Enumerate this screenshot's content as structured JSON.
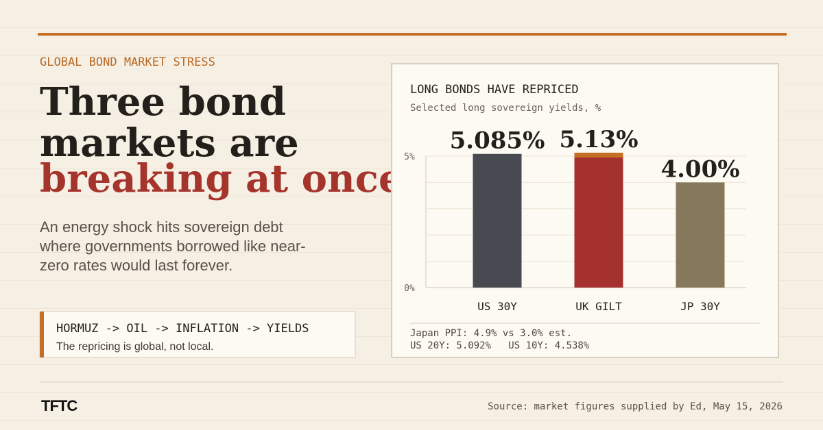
{
  "kicker": "GLOBAL BOND MARKET STRESS",
  "headline": [
    "Three bond",
    "markets are",
    "breaking at once"
  ],
  "subhead": "An energy shock hits sovereign debt where governments borrowed like near-zero rates would last forever.",
  "callout": {
    "title": "HORMUZ -> OIL -> INFLATION -> YIELDS",
    "text": "The repricing is global, not local."
  },
  "logo": "TFTC",
  "source": "Source: market figures supplied by Ed, May 15, 2026",
  "chart_data": {
    "type": "bar",
    "title": "LONG BONDS HAVE REPRICED",
    "subtitle": "Selected long sovereign yields, %",
    "categories": [
      "US 30Y",
      "UK GILT",
      "JP 30Y"
    ],
    "values": [
      5.085,
      5.13,
      4.0
    ],
    "value_labels": [
      "5.085%",
      "5.13%",
      "4.00%"
    ],
    "colors": [
      "#474a51",
      "#a5312f",
      "#86785a"
    ],
    "highlight_index": 1,
    "highlight_color": "#c46f25",
    "ylim": [
      0,
      5
    ],
    "yticks": [
      {
        "value": 0,
        "label": "0%"
      },
      {
        "value": 5,
        "label": "5%"
      }
    ],
    "minor_yticks": [
      1,
      2,
      3,
      4
    ],
    "grid": true,
    "notes": [
      "Japan PPI: 4.9% vs 3.0% est.",
      "US 20Y: 5.092%   US 10Y: 4.538%"
    ]
  }
}
